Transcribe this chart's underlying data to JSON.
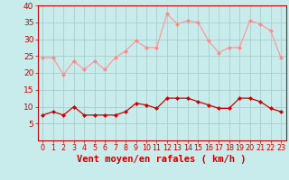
{
  "hours": [
    0,
    1,
    2,
    3,
    4,
    5,
    6,
    7,
    8,
    9,
    10,
    11,
    12,
    13,
    14,
    15,
    16,
    17,
    18,
    19,
    20,
    21,
    22,
    23
  ],
  "rafales": [
    24.5,
    24.5,
    19.5,
    23.5,
    21.0,
    23.5,
    21.0,
    24.5,
    26.5,
    29.5,
    27.5,
    27.5,
    37.5,
    34.5,
    35.5,
    35.0,
    29.5,
    26.0,
    27.5,
    27.5,
    35.5,
    34.5,
    32.5,
    24.5
  ],
  "moyen": [
    7.5,
    8.5,
    7.5,
    10.0,
    7.5,
    7.5,
    7.5,
    7.5,
    8.5,
    11.0,
    10.5,
    9.5,
    12.5,
    12.5,
    12.5,
    11.5,
    10.5,
    9.5,
    9.5,
    12.5,
    12.5,
    11.5,
    9.5,
    8.5
  ],
  "ylim": [
    0,
    40
  ],
  "yticks": [
    5,
    10,
    15,
    20,
    25,
    30,
    35,
    40
  ],
  "xlabel": "Vent moyen/en rafales ( km/h )",
  "bg_color": "#c8ecec",
  "grid_color": "#aacccc",
  "line_color_rafales": "#ff9999",
  "line_color_moyen": "#cc0000",
  "marker_color_rafales": "#ff8888",
  "marker_color_moyen": "#cc0000",
  "tick_color": "#cc0000",
  "xlabel_fontsize": 7.5,
  "ytick_fontsize": 6.5,
  "xtick_fontsize": 5.8
}
